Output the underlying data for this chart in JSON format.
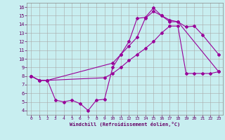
{
  "bg_color": "#c8eef0",
  "grid_color": "#a8a8a8",
  "line_color": "#990099",
  "xlabel": "Windchill (Refroidissement éolien,°C)",
  "xlim": [
    -0.5,
    23.5
  ],
  "ylim": [
    3.5,
    16.5
  ],
  "xticks": [
    0,
    1,
    2,
    3,
    4,
    5,
    6,
    7,
    8,
    9,
    10,
    11,
    12,
    13,
    14,
    15,
    16,
    17,
    18,
    19,
    20,
    21,
    22,
    23
  ],
  "yticks": [
    4,
    5,
    6,
    7,
    8,
    9,
    10,
    11,
    12,
    13,
    14,
    15,
    16
  ],
  "line1_x": [
    0,
    1,
    2,
    3,
    4,
    5,
    6,
    7,
    8,
    9,
    10,
    11,
    12,
    13,
    14,
    15,
    16,
    17,
    18,
    19,
    20,
    21,
    23
  ],
  "line1_y": [
    8.0,
    7.5,
    7.5,
    5.2,
    5.0,
    5.2,
    4.8,
    4.0,
    5.2,
    5.3,
    9.0,
    10.5,
    12.0,
    14.7,
    14.8,
    15.9,
    15.0,
    14.3,
    14.3,
    13.7,
    13.8,
    12.8,
    10.5
  ],
  "line2_x": [
    0,
    1,
    2,
    10,
    11,
    12,
    13,
    14,
    15,
    16,
    17,
    18,
    23
  ],
  "line2_y": [
    8.0,
    7.5,
    7.5,
    9.5,
    10.5,
    11.5,
    12.5,
    14.7,
    15.5,
    15.0,
    14.5,
    14.3,
    8.5
  ],
  "line3_x": [
    0,
    1,
    2,
    9,
    10,
    11,
    12,
    13,
    14,
    15,
    16,
    17,
    18,
    19,
    20,
    21,
    22,
    23
  ],
  "line3_y": [
    8.0,
    7.5,
    7.5,
    7.8,
    8.3,
    9.0,
    9.8,
    10.5,
    11.2,
    12.0,
    13.0,
    13.8,
    13.8,
    8.3,
    8.3,
    8.3,
    8.3,
    8.5
  ]
}
